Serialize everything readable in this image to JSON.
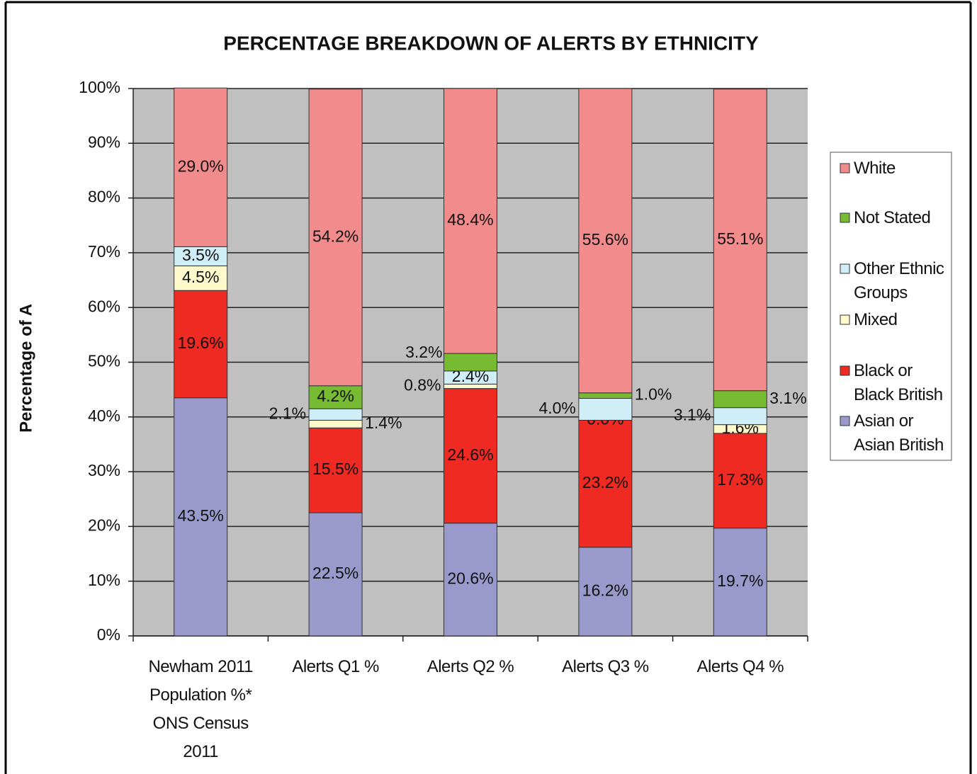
{
  "chart_data": {
    "type": "stacked_bar",
    "title": "PERCENTAGE BREAKDOWN OF ALERTS BY ETHNICITY",
    "ylabel": "Percentage of A",
    "categories": [
      "Newham 2011 Population %* ONS Census 2011",
      "Alerts Q1 %",
      "Alerts Q2 %",
      "Alerts Q3 %",
      "Alerts Q4 %"
    ],
    "series": [
      {
        "name": "Asian or Asian British",
        "color": "#9999cc",
        "values": [
          43.5,
          22.5,
          20.6,
          16.2,
          19.7
        ],
        "value_labels": [
          "43.5%",
          "22.5%",
          "20.6%",
          "16.2%",
          "19.7%"
        ]
      },
      {
        "name": "Black or Black British",
        "color": "#ee2a22",
        "values": [
          19.6,
          15.5,
          24.6,
          23.2,
          17.3
        ],
        "value_labels": [
          "19.6%",
          "15.5%",
          "24.6%",
          "23.2%",
          "17.3%"
        ]
      },
      {
        "name": "Mixed",
        "color": "#fffacc",
        "values": [
          4.5,
          1.4,
          0.8,
          0.0,
          1.6
        ],
        "value_labels": [
          "4.5%",
          "1.4%",
          "0.8%",
          "0.0%",
          "1.6%"
        ]
      },
      {
        "name": "Other Ethnic Groups",
        "color": "#d0eef8",
        "values": [
          3.5,
          2.1,
          2.4,
          4.0,
          3.1
        ],
        "value_labels": [
          "3.5%",
          "2.1%",
          "2.4%",
          "4.0%",
          "3.1%"
        ]
      },
      {
        "name": "Not Stated",
        "color": "#77bb33",
        "values": [
          0,
          4.2,
          3.2,
          1.0,
          3.1
        ],
        "value_labels": [
          "0",
          "4.2%",
          "3.2%",
          "1.0%",
          "3.1%"
        ]
      },
      {
        "name": "White",
        "color": "#f28b8b",
        "values": [
          29.0,
          54.2,
          48.4,
          55.6,
          55.1
        ],
        "value_labels": [
          "29.0%",
          "54.2%",
          "48.4%",
          "55.6%",
          "55.1%"
        ]
      }
    ],
    "ylim": [
      0,
      100
    ],
    "yticks": [
      {
        "value": 0,
        "label": "0%"
      },
      {
        "value": 10,
        "label": "10%"
      },
      {
        "value": 20,
        "label": "20%"
      },
      {
        "value": 30,
        "label": "30%"
      },
      {
        "value": 40,
        "label": "40%"
      },
      {
        "value": 50,
        "label": "50%"
      },
      {
        "value": 60,
        "label": "60%"
      },
      {
        "value": 70,
        "label": "70%"
      },
      {
        "value": 80,
        "label": "80%"
      },
      {
        "value": 90,
        "label": "90%"
      },
      {
        "value": 100,
        "label": "100%"
      }
    ],
    "grid": true,
    "legend": "right"
  }
}
